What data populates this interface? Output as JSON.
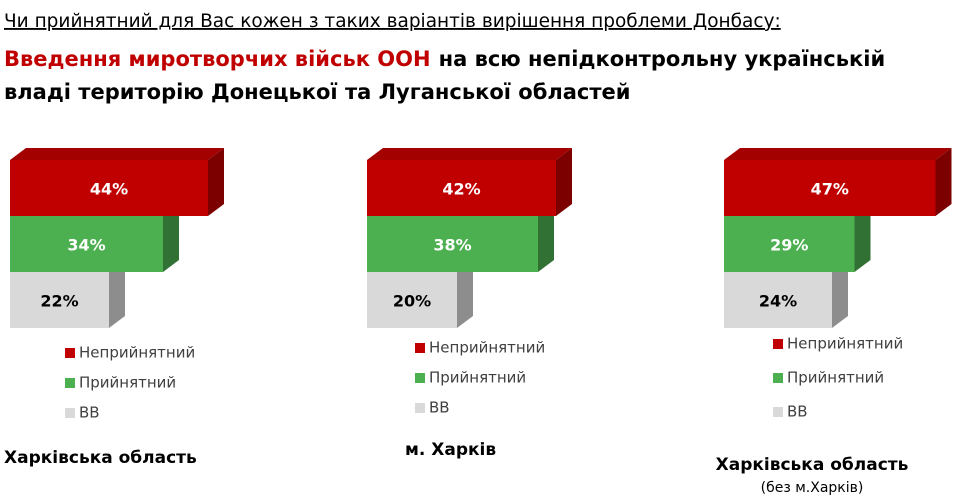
{
  "header": {
    "question": "Чи прийнятний для Вас кожен з таких варіантів вирішення проблеми Донбасу:",
    "highlight": "Введення миротворчих військ ООН",
    "statement_lines": [
      "на всю непідконтрольну українській",
      "владі територію Донецької та Луганської областей"
    ]
  },
  "chart_data": [
    {
      "type": "bar",
      "orientation": "horizontal",
      "legend": true,
      "title": "Харківська область",
      "categories": [
        "Неприйнятний",
        "Прийнятний",
        "ВВ"
      ],
      "values": [
        44,
        34,
        22
      ],
      "value_labels": [
        "44%",
        "34%",
        "22%"
      ],
      "colors": [
        "#c00000",
        "#4cb050",
        "#d9d9d9"
      ]
    },
    {
      "type": "bar",
      "orientation": "horizontal",
      "legend": true,
      "title": "м. Харків",
      "categories": [
        "Неприйнятний",
        "Прийнятний",
        "ВВ"
      ],
      "values": [
        42,
        38,
        20
      ],
      "value_labels": [
        "42%",
        "38%",
        "20%"
      ],
      "colors": [
        "#c00000",
        "#4cb050",
        "#d9d9d9"
      ]
    },
    {
      "type": "bar",
      "orientation": "horizontal",
      "legend": true,
      "title": "Харківська область",
      "subtitle": "(без м.Харків)",
      "categories": [
        "Неприйнятний",
        "Прийнятний",
        "ВВ"
      ],
      "values": [
        47,
        29,
        24
      ],
      "value_labels": [
        "47%",
        "29%",
        "24%"
      ],
      "colors": [
        "#c00000",
        "#4cb050",
        "#d9d9d9"
      ]
    }
  ]
}
